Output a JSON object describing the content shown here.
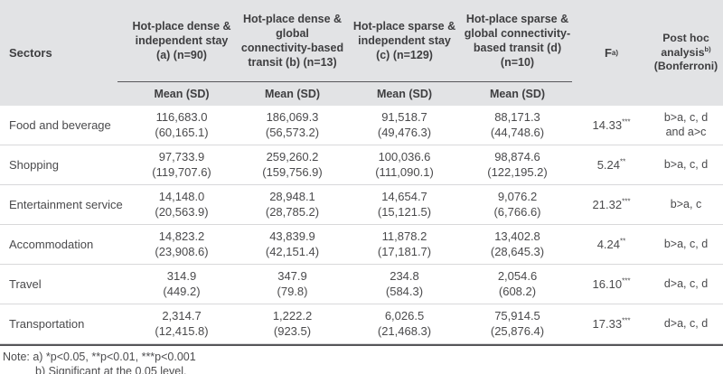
{
  "table": {
    "sectors_header": "Sectors",
    "groups": [
      {
        "label": "Hot-place dense & independent stay (a) (n=90)"
      },
      {
        "label": "Hot-place dense & global connectivity-based transit (b) (n=13)"
      },
      {
        "label": "Hot-place sparse & independent stay (c) (n=129)"
      },
      {
        "label": "Hot-place sparse & global connectivity-based transit (d) (n=10)"
      }
    ],
    "mean_sd_label": "Mean (SD)",
    "f_label": "F",
    "f_sup": "a)",
    "posthoc_label": "Post hoc analysis",
    "posthoc_sup": "b)",
    "posthoc_sub": "(Bonferroni)",
    "rows": [
      {
        "sector": "Food and beverage",
        "means": [
          "116,683.0",
          "186,069.3",
          "91,518.7",
          "88,171.3"
        ],
        "sds": [
          "(60,165.1)",
          "(56,573.2)",
          "(49,476.3)",
          "(44,748.6)"
        ],
        "f": "14.33",
        "f_stars": "***",
        "posthoc": "b>a, c, d and a>c"
      },
      {
        "sector": "Shopping",
        "means": [
          "97,733.9",
          "259,260.2",
          "100,036.6",
          "98,874.6"
        ],
        "sds": [
          "(119,707.6)",
          "(159,756.9)",
          "(111,090.1)",
          "(122,195.2)"
        ],
        "f": "5.24",
        "f_stars": "**",
        "posthoc": "b>a, c, d"
      },
      {
        "sector": "Entertainment service",
        "means": [
          "14,148.0",
          "28,948.1",
          "14,654.7",
          "9,076.2"
        ],
        "sds": [
          "(20,563.9)",
          "(28,785.2)",
          "(15,121.5)",
          "(6,766.6)"
        ],
        "f": "21.32",
        "f_stars": "***",
        "posthoc": "b>a, c"
      },
      {
        "sector": "Accommodation",
        "means": [
          "14,823.2",
          "43,839.9",
          "11,878.2",
          "13,402.8"
        ],
        "sds": [
          "(23,908.6)",
          "(42,151.4)",
          "(17,181.7)",
          "(28,645.3)"
        ],
        "f": "4.24",
        "f_stars": "**",
        "posthoc": "b>a, c, d"
      },
      {
        "sector": "Travel",
        "means": [
          "314.9",
          "347.9",
          "234.8",
          "2,054.6"
        ],
        "sds": [
          "(449.2)",
          "(79.8)",
          "(584.3)",
          "(608.2)"
        ],
        "f": "16.10",
        "f_stars": "***",
        "posthoc": "d>a, c, d"
      },
      {
        "sector": "Transportation",
        "means": [
          "2,314.7",
          "1,222.2",
          "6,026.5",
          "75,914.5"
        ],
        "sds": [
          "(12,415.8)",
          "(923.5)",
          "(21,468.3)",
          "(25,876.4)"
        ],
        "f": "17.33",
        "f_stars": "***",
        "posthoc": "d>a, c, d"
      }
    ]
  },
  "notes": {
    "line1": "Note: a) *p<0.05, **p<0.01, ***p<0.001",
    "line2": "b) Significant at the 0.05 level."
  }
}
